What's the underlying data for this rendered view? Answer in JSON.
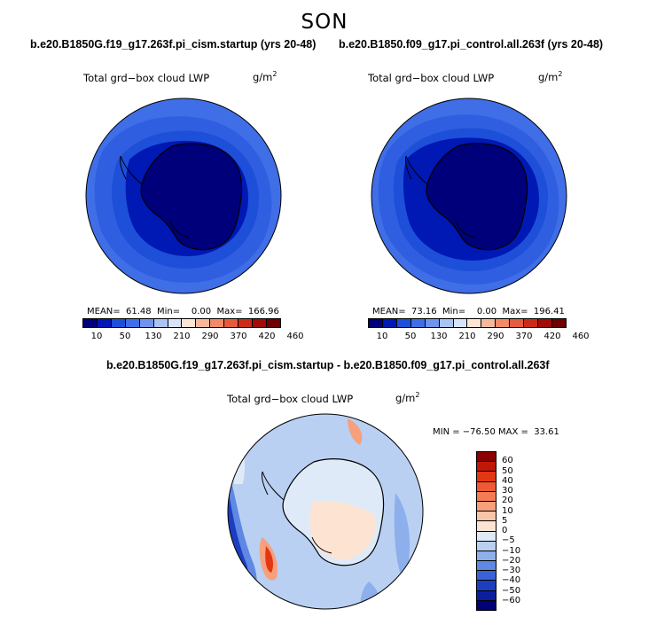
{
  "season": "SON",
  "left_panel": {
    "case_title": "b.e20.B1850G.f19_g17.263f.pi_cism.startup (yrs 20-48)",
    "plot_title": "Total grd−box cloud LWP",
    "units": "g/m",
    "units_sup": "2",
    "stats": "MEAN=  61.48  Min=    0.00  Max=  166.96"
  },
  "right_panel": {
    "case_title": "b.e20.B1850.f09_g17.pi_control.all.263f (yrs 20-48)",
    "plot_title": "Total grd−box cloud LWP",
    "units": "g/m",
    "units_sup": "2",
    "stats": "MEAN=  73.16  Min=    0.00  Max=  196.41"
  },
  "diff_panel": {
    "case_title": "b.e20.B1850G.f19_g17.263f.pi_cism.startup - b.e20.B1850.f09_g17.pi_control.all.263f",
    "plot_title": "Total grd−box cloud LWP",
    "units": "g/m",
    "units_sup": "2",
    "minmax": "MIN = −76.50 MAX =  33.61"
  },
  "abs_colorbar": {
    "labels": [
      "10",
      "50",
      "130",
      "210",
      "290",
      "370",
      "420",
      "460"
    ],
    "colors": [
      "#00007a",
      "#0018b4",
      "#1e4fd9",
      "#3f6ee6",
      "#6f94ee",
      "#a8c3f4",
      "#d7e3f9",
      "#fde5d3",
      "#f7b89a",
      "#f08a68",
      "#e65a3d",
      "#cc2a18",
      "#a10c06",
      "#6e0000"
    ]
  },
  "diff_colorbar": {
    "labels": [
      "60",
      "50",
      "40",
      "30",
      "20",
      "10",
      "5",
      "0",
      "−5",
      "−10",
      "−20",
      "−30",
      "−40",
      "−50",
      "−60"
    ],
    "colors": [
      "#8b0000",
      "#c01808",
      "#e23714",
      "#ee5a33",
      "#f37c55",
      "#f6a07c",
      "#f9c5a8",
      "#fde4d2",
      "#deeaf8",
      "#b9d0f3",
      "#8dafec",
      "#5f88e4",
      "#3a62d8",
      "#1c3fc1",
      "#0a1fa0",
      "#000078"
    ]
  },
  "map_colors": {
    "ocean_base": "#3f6ee6",
    "ring_mid": "#1e4fd9",
    "ring_inner": "#0018b4",
    "antarctica": "#00007a",
    "diff_base": "#b9d0f3",
    "diff_land": "#deeaf8",
    "diff_warm": "#fde4d2"
  }
}
